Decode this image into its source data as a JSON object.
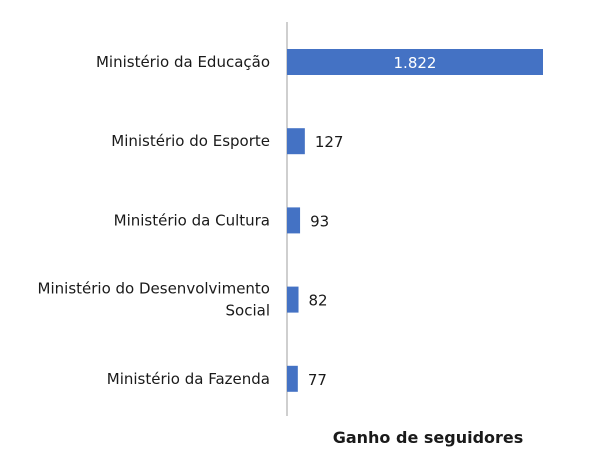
{
  "chart_data": {
    "type": "bar",
    "orientation": "horizontal",
    "categories": [
      [
        "Ministério da Educação"
      ],
      [
        "Ministério do Esporte"
      ],
      [
        "Ministério da Cultura"
      ],
      [
        "Ministério do Desenvolvimento",
        "Social"
      ],
      [
        "Ministério da Fazenda"
      ]
    ],
    "values": [
      1822,
      127,
      93,
      82,
      77
    ],
    "data_labels": [
      "1.822",
      "127",
      "93",
      "82",
      "77"
    ],
    "title": "",
    "xlabel": "Ganho de seguidores",
    "ylabel": "",
    "xlim": [
      0,
      1822
    ],
    "grid": false,
    "legend": "none",
    "colors": {
      "bar": "#4472C4",
      "axis": "#bfbfbf",
      "text": "#1a1a1a",
      "inside_label": "#ffffff"
    }
  }
}
